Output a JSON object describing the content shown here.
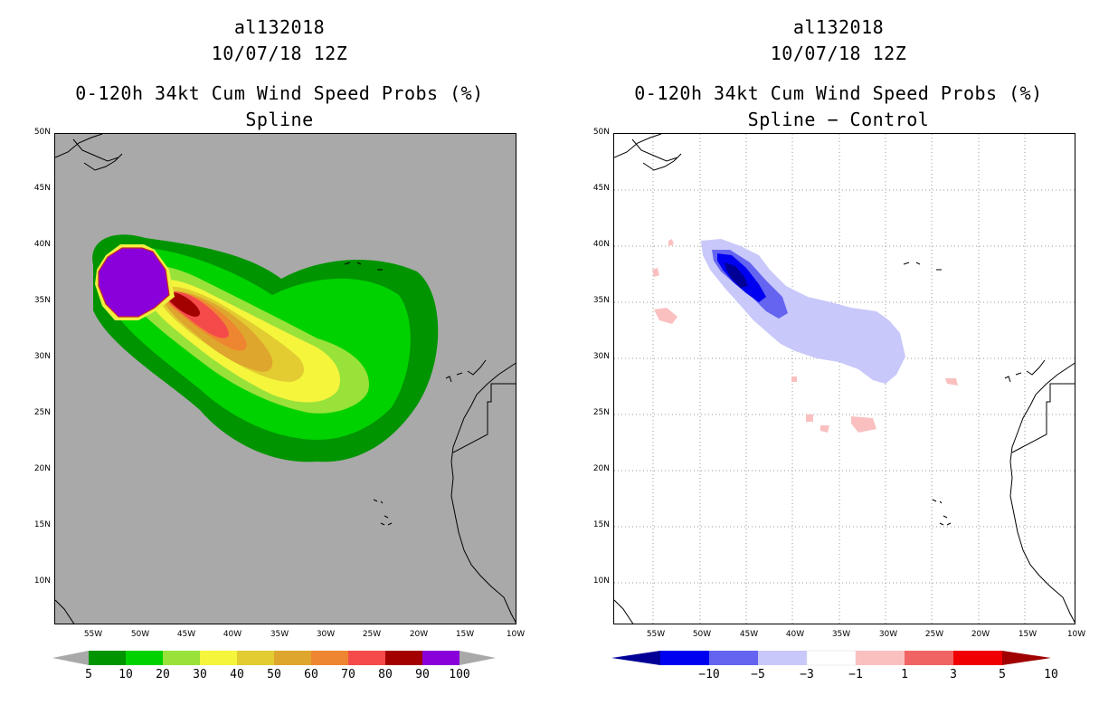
{
  "left": {
    "title": {
      "storm_id": "al132018",
      "datetime": "10/07/18 12Z",
      "product": "0-120h 34kt Cum Wind Speed Probs (%)",
      "subtitle": "Spline"
    },
    "colorbar": {
      "labels": [
        "5",
        "10",
        "20",
        "30",
        "40",
        "50",
        "60",
        "70",
        "80",
        "90",
        "100"
      ],
      "colors": [
        "#009400",
        "#00d200",
        "#98e23a",
        "#f5f53c",
        "#e2cc31",
        "#dfa62d",
        "#ee8631",
        "#f54a4a",
        "#a30000",
        "#8a00da"
      ]
    }
  },
  "right": {
    "title": {
      "storm_id": "al132018",
      "datetime": "10/07/18 12Z",
      "product": "0-120h 34kt Cum Wind Speed Probs (%)",
      "subtitle": "Spline − Control"
    },
    "colorbar": {
      "labels": [
        "−10",
        "−5",
        "−3",
        "−1",
        "1",
        "3",
        "5",
        "10"
      ],
      "colors": [
        "#000096",
        "#0000f0",
        "#6464f0",
        "#c8c8fa",
        "#ffffff",
        "#fac0c0",
        "#f06464",
        "#f00000",
        "#a00000"
      ]
    }
  },
  "axes": {
    "lat_labels": [
      "50N",
      "45N",
      "40N",
      "35N",
      "30N",
      "25N",
      "20N",
      "15N",
      "10N"
    ],
    "lon_labels": [
      "55W",
      "50W",
      "45W",
      "40W",
      "35W",
      "30W",
      "25W",
      "20W",
      "15W",
      "10W"
    ]
  },
  "colors": {
    "land_mask": "#a9a9a9",
    "coast": "#000000",
    "grid": "#999999"
  }
}
